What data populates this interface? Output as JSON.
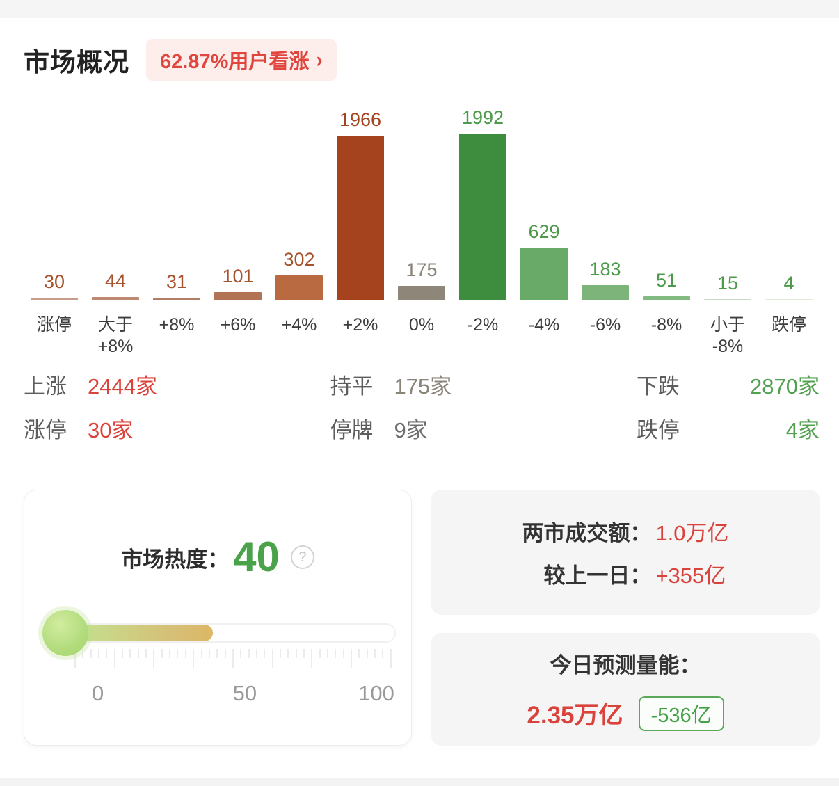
{
  "header": {
    "title": "市场概况",
    "badge_label": "62.87%用户看涨",
    "badge_chevron": "›"
  },
  "chart_data": {
    "type": "bar",
    "categories": [
      "涨停",
      "大于\n+8%",
      "+8%",
      "+6%",
      "+4%",
      "+2%",
      "0%",
      "-2%",
      "-4%",
      "-6%",
      "-8%",
      "小于\n-8%",
      "跌停"
    ],
    "values": [
      30,
      44,
      31,
      101,
      302,
      1966,
      175,
      1992,
      629,
      183,
      51,
      15,
      4
    ],
    "bar_colors": [
      "#c79e8c",
      "#bd8973",
      "#b27d64",
      "#b27355",
      "#b96a41",
      "#a4431d",
      "#8e8678",
      "#3e8c3d",
      "#6aaa68",
      "#7cb47a",
      "#83ba81",
      "#ccd8ca",
      "#dfeadd"
    ],
    "label_colors": [
      "#a6522c",
      "#a6522c",
      "#a6522c",
      "#a6522c",
      "#a6522c",
      "#a4431d",
      "#8b8478",
      "#4d9a4b",
      "#4d9a4b",
      "#4d9a4b",
      "#4d9a4b",
      "#4d9a4b",
      "#4d9a4b"
    ],
    "title": "",
    "xlabel": "",
    "ylabel": "",
    "ylim": [
      0,
      1992
    ],
    "grid": false,
    "legend": false
  },
  "summary": {
    "rows": [
      [
        {
          "label": "上涨",
          "value": "2444家",
          "color": "#d9433b"
        },
        {
          "label": "持平",
          "value": "175家",
          "color": "#8b8478"
        },
        {
          "label": "下跌",
          "value": "2870家",
          "color": "#52a050"
        }
      ],
      [
        {
          "label": "涨停",
          "value": "30家",
          "color": "#d9433b"
        },
        {
          "label": "停牌",
          "value": "9家",
          "color": "#6e6e6e"
        },
        {
          "label": "跌停",
          "value": "4家",
          "color": "#52a050"
        }
      ]
    ]
  },
  "heat_panel": {
    "label": "市场热度：",
    "value": "40",
    "help_icon": "?",
    "scale_labels": [
      "0",
      "50",
      "100"
    ],
    "percent": 40,
    "accent_green": "#4aa34a"
  },
  "turnover_panel": {
    "rows": [
      {
        "label": "两市成交额：",
        "value": "1.0万亿"
      },
      {
        "label": "较上一日：",
        "value": "+355亿"
      }
    ],
    "value_color": "#d9433b"
  },
  "forecast_panel": {
    "label": "今日预测量能：",
    "value": "2.35万亿",
    "badge": "-536亿",
    "value_color": "#d9433b",
    "badge_color": "#42a046"
  }
}
